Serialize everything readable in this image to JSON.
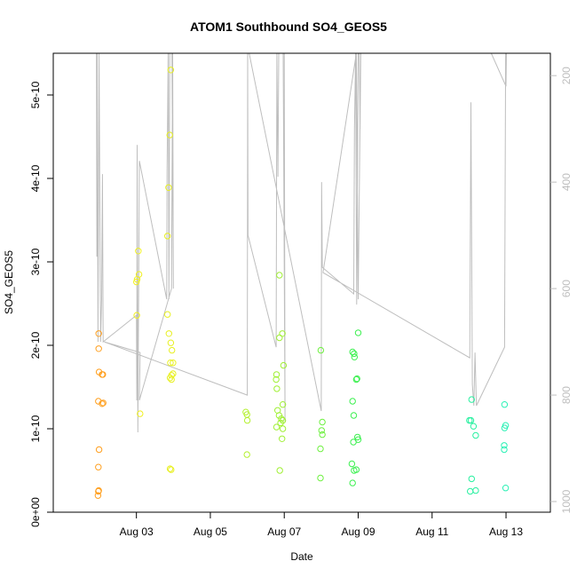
{
  "chart_data": {
    "type": "scatter",
    "title": "ATOM1 Southbound SO4_GEOS5",
    "xlabel": "Date",
    "ylabel": "SO4_GEOS5",
    "xlim": [
      0.75,
      14.2
    ],
    "ylim": [
      0,
      5.5e-10
    ],
    "x_ticks": [
      {
        "value": 3,
        "label": "Aug 03"
      },
      {
        "value": 5,
        "label": "Aug 05"
      },
      {
        "value": 7,
        "label": "Aug 07"
      },
      {
        "value": 9,
        "label": "Aug 09"
      },
      {
        "value": 11,
        "label": "Aug 11"
      },
      {
        "value": 13,
        "label": "Aug 13"
      }
    ],
    "y_ticks": [
      {
        "value": 0,
        "label": "0e+00"
      },
      {
        "value": 1e-10,
        "label": "1e-10"
      },
      {
        "value": 2e-10,
        "label": "2e-10"
      },
      {
        "value": 3e-10,
        "label": "3e-10"
      },
      {
        "value": 4e-10,
        "label": "4e-10"
      },
      {
        "value": 5e-10,
        "label": "5e-10"
      }
    ],
    "y2_axis": {
      "ylim": [
        1020,
        158
      ],
      "ticks": [
        {
          "value": 200,
          "label": "200"
        },
        {
          "value": 400,
          "label": "400"
        },
        {
          "value": 600,
          "label": "600"
        },
        {
          "value": 800,
          "label": "800"
        },
        {
          "value": 1000,
          "label": "1000"
        }
      ],
      "color": "#bebebe"
    },
    "grid": false,
    "series": [
      {
        "kind": "points",
        "marker": "open-circle",
        "points": [
          [
            1.98,
            2.14e-10,
            "#ff9f1e"
          ],
          [
            1.98,
            1.96e-10,
            "#ff9f1e"
          ],
          [
            1.99,
            1.68e-10,
            "#ff9f1e"
          ],
          [
            2.07,
            1.65e-10,
            "#ff9f1e"
          ],
          [
            2.09,
            1.65e-10,
            "#ff9f1e"
          ],
          [
            1.97,
            1.33e-10,
            "#ff9f1e"
          ],
          [
            2.07,
            1.3e-10,
            "#ff9f1e"
          ],
          [
            2.1,
            1.31e-10,
            "#ff9f1e"
          ],
          [
            1.99,
            7.5e-11,
            "#ff9f1e"
          ],
          [
            1.97,
            5.4e-11,
            "#ff9f1e"
          ],
          [
            1.97,
            2.5e-11,
            "#ff9f1e"
          ],
          [
            1.98,
            2.6e-11,
            "#ff9f1e"
          ],
          [
            1.96,
            2e-11,
            "#ff9f1e"
          ],
          [
            3.05,
            3.13e-10,
            "#f0f020"
          ],
          [
            3.07,
            2.85e-10,
            "#f0f020"
          ],
          [
            3.02,
            2.79e-10,
            "#f0f020"
          ],
          [
            3.0,
            2.76e-10,
            "#f0f020"
          ],
          [
            3.01,
            2.36e-10,
            "#f0f020"
          ],
          [
            3.1,
            1.18e-10,
            "#f0f020"
          ],
          [
            3.93,
            5.3e-10,
            "#e8f020"
          ],
          [
            3.9,
            4.52e-10,
            "#e8f020"
          ],
          [
            3.87,
            3.89e-10,
            "#e8f020"
          ],
          [
            3.84,
            3.31e-10,
            "#e8f020"
          ],
          [
            3.84,
            2.37e-10,
            "#e8f020"
          ],
          [
            3.88,
            2.14e-10,
            "#e8f020"
          ],
          [
            3.93,
            2.03e-10,
            "#e8f020"
          ],
          [
            3.96,
            1.94e-10,
            "#e8f020"
          ],
          [
            3.92,
            1.79e-10,
            "#e8f020"
          ],
          [
            3.99,
            1.79e-10,
            "#e8f020"
          ],
          [
            3.95,
            1.64e-10,
            "#e8f020"
          ],
          [
            3.99,
            1.66e-10,
            "#e8f020"
          ],
          [
            3.91,
            1.61e-10,
            "#e8f020"
          ],
          [
            3.95,
            1.59e-10,
            "#e8f020"
          ],
          [
            3.91,
            5.2e-11,
            "#e8f020"
          ],
          [
            3.94,
            5.1e-11,
            "#e8f020"
          ],
          [
            5.96,
            1.2e-10,
            "#b4f030"
          ],
          [
            5.99,
            1.17e-10,
            "#b4f030"
          ],
          [
            6.0,
            1.1e-10,
            "#b4f030"
          ],
          [
            5.99,
            6.9e-11,
            "#b4f030"
          ],
          [
            6.87,
            2.84e-10,
            "#a0f035"
          ],
          [
            6.95,
            2.14e-10,
            "#a0f035"
          ],
          [
            6.87,
            2.09e-10,
            "#a0f035"
          ],
          [
            6.98,
            1.76e-10,
            "#a0f035"
          ],
          [
            6.79,
            1.65e-10,
            "#a0f035"
          ],
          [
            6.78,
            1.59e-10,
            "#a0f035"
          ],
          [
            6.8,
            1.48e-10,
            "#a0f035"
          ],
          [
            6.96,
            1.29e-10,
            "#a0f035"
          ],
          [
            6.82,
            1.22e-10,
            "#a0f035"
          ],
          [
            6.86,
            1.16e-10,
            "#a0f035"
          ],
          [
            6.92,
            1.12e-10,
            "#a0f035"
          ],
          [
            6.96,
            1.1e-10,
            "#a0f035"
          ],
          [
            6.9,
            1.07e-10,
            "#a0f035"
          ],
          [
            6.79,
            1.02e-10,
            "#a0f035"
          ],
          [
            6.96,
            1e-10,
            "#a0f035"
          ],
          [
            6.94,
            8.8e-11,
            "#a0f035"
          ],
          [
            6.88,
            5e-11,
            "#a0f035"
          ],
          [
            7.99,
            1.94e-10,
            "#6ef040"
          ],
          [
            8.03,
            1.08e-10,
            "#6ef040"
          ],
          [
            8.01,
            9.8e-11,
            "#6ef040"
          ],
          [
            8.03,
            9.3e-11,
            "#6ef040"
          ],
          [
            7.98,
            7.6e-11,
            "#6ef040"
          ],
          [
            7.98,
            4.1e-11,
            "#6ef040"
          ],
          [
            9.0,
            2.15e-10,
            "#3cf050"
          ],
          [
            8.85,
            1.92e-10,
            "#3cf050"
          ],
          [
            8.89,
            1.9e-10,
            "#3cf050"
          ],
          [
            8.9,
            1.86e-10,
            "#3cf050"
          ],
          [
            8.97,
            1.6e-10,
            "#3cf050"
          ],
          [
            8.95,
            1.59e-10,
            "#3cf050"
          ],
          [
            8.85,
            1.33e-10,
            "#3cf050"
          ],
          [
            8.88,
            1.16e-10,
            "#3cf050"
          ],
          [
            8.98,
            9e-11,
            "#3cf050"
          ],
          [
            9.0,
            8.7e-11,
            "#3cf050"
          ],
          [
            8.87,
            8.4e-11,
            "#3cf050"
          ],
          [
            8.83,
            5.8e-11,
            "#3cf050"
          ],
          [
            8.95,
            5.1e-11,
            "#3cf050"
          ],
          [
            8.89,
            5e-11,
            "#3cf050"
          ],
          [
            8.85,
            3.5e-11,
            "#3cf050"
          ],
          [
            12.07,
            1.35e-10,
            "#28f0a0"
          ],
          [
            12.01,
            1.1e-10,
            "#28f0a0"
          ],
          [
            12.05,
            1.1e-10,
            "#28f0a0"
          ],
          [
            12.12,
            1.03e-10,
            "#28f0a0"
          ],
          [
            12.18,
            9.2e-11,
            "#28f0a0"
          ],
          [
            12.07,
            4e-11,
            "#28f0a0"
          ],
          [
            12.03,
            2.5e-11,
            "#28f0a0"
          ],
          [
            12.18,
            2.6e-11,
            "#28f0a0"
          ],
          [
            12.96,
            1.29e-10,
            "#28f0b4"
          ],
          [
            12.99,
            1.04e-10,
            "#28f0b4"
          ],
          [
            12.96,
            1.01e-10,
            "#28f0b4"
          ],
          [
            12.95,
            8e-11,
            "#28f0b4"
          ],
          [
            12.95,
            7.5e-11,
            "#28f0b4"
          ],
          [
            12.99,
            2.9e-11,
            "#28f0b4"
          ]
        ]
      },
      {
        "kind": "pressure-line",
        "axis": "y2",
        "color": "#bebebe",
        "points": [
          [
            1.92,
            158
          ],
          [
            1.93,
            540
          ],
          [
            1.94,
            158
          ],
          [
            1.96,
            700
          ],
          [
            1.99,
            158
          ],
          [
            2.03,
            700
          ],
          [
            2.06,
            620
          ],
          [
            2.08,
            385
          ],
          [
            2.1,
            700
          ],
          [
            3.0,
            650
          ],
          [
            3.01,
            810
          ],
          [
            3.02,
            330
          ],
          [
            3.04,
            870
          ],
          [
            3.08,
            360
          ],
          [
            3.82,
            620
          ],
          [
            3.83,
            380
          ],
          [
            3.86,
            158
          ],
          [
            3.88,
            620
          ],
          [
            3.9,
            158
          ],
          [
            3.93,
            158
          ],
          [
            3.96,
            158
          ],
          [
            4.0,
            600
          ],
          [
            3.98,
            158
          ],
          [
            3.95,
            600
          ],
          [
            3.08,
            810
          ],
          [
            3.1,
            720
          ],
          [
            2.13,
            700
          ],
          [
            6.0,
            800
          ],
          [
            6.01,
            158
          ],
          [
            6.02,
            500
          ],
          [
            6.78,
            710
          ],
          [
            6.8,
            158
          ],
          [
            6.83,
            390
          ],
          [
            6.85,
            158
          ],
          [
            6.88,
            158
          ],
          [
            6.92,
            158
          ],
          [
            6.96,
            158
          ],
          [
            7.0,
            158
          ],
          [
            7.02,
            850
          ],
          [
            6.97,
            158
          ],
          [
            6.85,
            158
          ],
          [
            6.6,
            158
          ],
          [
            6.05,
            158
          ],
          [
            8.0,
            830
          ],
          [
            8.01,
            400
          ],
          [
            8.03,
            560
          ],
          [
            8.88,
            610
          ],
          [
            8.9,
            300
          ],
          [
            8.93,
            158
          ],
          [
            8.96,
            630
          ],
          [
            9.0,
            158
          ],
          [
            9.03,
            158
          ],
          [
            9.05,
            300
          ],
          [
            9.07,
            158
          ],
          [
            9.0,
            620
          ],
          [
            8.95,
            158
          ],
          [
            8.05,
            570
          ],
          [
            12.02,
            730
          ],
          [
            12.05,
            250
          ],
          [
            12.09,
            780
          ],
          [
            12.13,
            820
          ],
          [
            12.16,
            720
          ],
          [
            12.2,
            820
          ],
          [
            12.96,
            710
          ],
          [
            12.99,
            158
          ],
          [
            13.01,
            158
          ],
          [
            13.0,
            220
          ],
          [
            12.6,
            158
          ]
        ]
      }
    ]
  }
}
